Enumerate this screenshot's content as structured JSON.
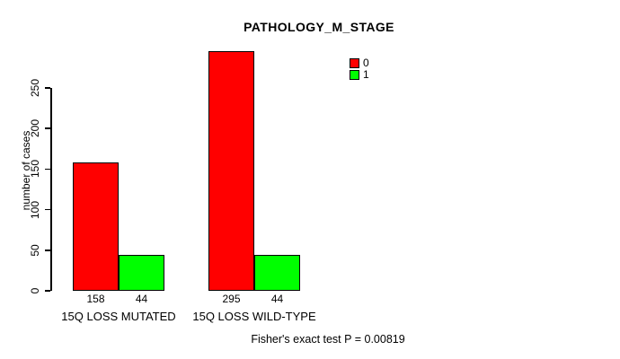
{
  "chart_data": {
    "type": "bar",
    "title": "PATHOLOGY_M_STAGE",
    "ylabel": "number of cases",
    "xlabel": "",
    "categories": [
      "15Q LOSS MUTATED",
      "15Q LOSS WILD-TYPE"
    ],
    "series": [
      {
        "name": "0",
        "color": "#ff0000",
        "values": [
          158,
          295
        ]
      },
      {
        "name": "1",
        "color": "#00ff00",
        "values": [
          44,
          44
        ]
      }
    ],
    "bar_value_labels": [
      [
        "158",
        "44"
      ],
      [
        "295",
        "44"
      ]
    ],
    "yticks": [
      0,
      50,
      100,
      150,
      200,
      250
    ],
    "ylim": [
      0,
      295
    ],
    "grid": false,
    "legend_position": "inside-top-right",
    "bar_border_color": "#000000",
    "footnote": "Fisher's exact test P = 0.00819"
  }
}
